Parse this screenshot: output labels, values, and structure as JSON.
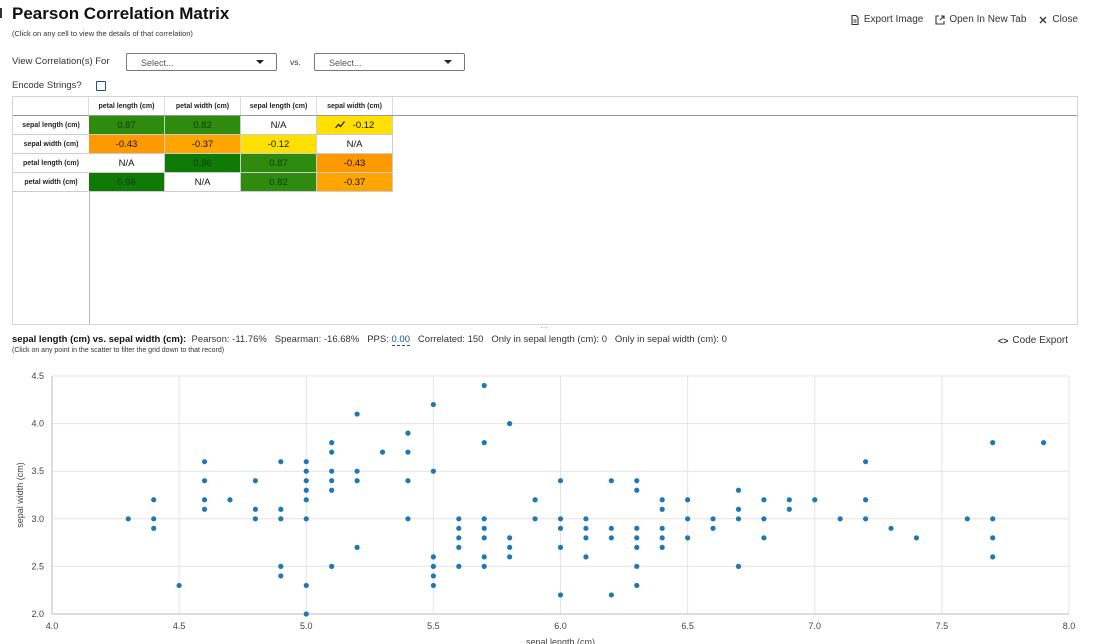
{
  "header": {
    "title": "Pearson Correlation Matrix",
    "subtitle": "(Click on any cell to view the details of that correlation)"
  },
  "actions": {
    "export_image": "Export Image",
    "open_new_tab": "Open In New Tab",
    "close": "Close"
  },
  "controls": {
    "view_label": "View Correlation(s) For",
    "select1_placeholder": "Select...",
    "vs_label": "vs.",
    "select2_placeholder": "Select...",
    "encode_label": "Encode Strings?",
    "encode_checked": false
  },
  "matrix": {
    "columns": [
      "petal length (cm)",
      "petal width (cm)",
      "sepal length (cm)",
      "sepal width (cm)"
    ],
    "rows": [
      {
        "label": "sepal length (cm)",
        "cells": [
          {
            "text": "0.87",
            "color": "#2e8b0e"
          },
          {
            "text": "0.82",
            "color": "#2e8b0e"
          },
          {
            "text": "N/A",
            "color": "#ffffff"
          },
          {
            "text": "-0.12",
            "color": "#ffe000",
            "icon": "trend-icon"
          }
        ]
      },
      {
        "label": "sepal width (cm)",
        "cells": [
          {
            "text": "-0.43",
            "color": "#ff9900"
          },
          {
            "text": "-0.37",
            "color": "#ffa500"
          },
          {
            "text": "-0.12",
            "color": "#ffe000"
          },
          {
            "text": "N/A",
            "color": "#ffffff"
          }
        ]
      },
      {
        "label": "petal length (cm)",
        "cells": [
          {
            "text": "N/A",
            "color": "#ffffff"
          },
          {
            "text": "0.96",
            "color": "#0f7a05"
          },
          {
            "text": "0.87",
            "color": "#2e8b0e"
          },
          {
            "text": "-0.43",
            "color": "#ff9900"
          }
        ]
      },
      {
        "label": "petal width (cm)",
        "cells": [
          {
            "text": "0.96",
            "color": "#0f7a05"
          },
          {
            "text": "N/A",
            "color": "#ffffff"
          },
          {
            "text": "0.82",
            "color": "#2e8b0e"
          },
          {
            "text": "-0.37",
            "color": "#ffa500"
          }
        ]
      }
    ]
  },
  "scatter_info": {
    "title": "sepal length (cm) vs. sepal width (cm):",
    "pearson_label": "Pearson:",
    "pearson": "-11.76%",
    "spearman_label": "Spearman:",
    "spearman": "-16.68%",
    "pps_label": "PPS:",
    "pps": "0.00",
    "correlated_label": "Correlated:",
    "correlated": "150",
    "only_x_label": "Only in sepal length (cm):",
    "only_x": "0",
    "only_y_label": "Only in sepal width (cm):",
    "only_y": "0",
    "subtitle": "(Click on any point in the scatter to filter the grid down to that record)",
    "code_export": "Code Export"
  },
  "chart_data": {
    "type": "scatter",
    "title": "",
    "xlabel": "sepal length (cm)",
    "ylabel": "sepal width (cm)",
    "xlim": [
      4.0,
      8.0
    ],
    "ylim": [
      2.0,
      4.5
    ],
    "xticks": [
      "4.0",
      "4.5",
      "5.0",
      "5.5",
      "6.0",
      "6.5",
      "7.0",
      "7.5",
      "8.0"
    ],
    "yticks": [
      "2.0",
      "2.5",
      "3.0",
      "3.5",
      "4.0",
      "4.5"
    ],
    "grid": true,
    "point_color": "#1f77b4",
    "points": [
      [
        4.3,
        3.0
      ],
      [
        4.4,
        2.9
      ],
      [
        4.4,
        3.0
      ],
      [
        4.4,
        3.2
      ],
      [
        4.5,
        2.3
      ],
      [
        4.6,
        3.1
      ],
      [
        4.6,
        3.2
      ],
      [
        4.6,
        3.4
      ],
      [
        4.6,
        3.6
      ],
      [
        4.7,
        3.2
      ],
      [
        4.8,
        3.0
      ],
      [
        4.8,
        3.1
      ],
      [
        4.8,
        3.4
      ],
      [
        4.9,
        2.4
      ],
      [
        4.9,
        2.5
      ],
      [
        4.9,
        3.0
      ],
      [
        4.9,
        3.1
      ],
      [
        4.9,
        3.6
      ],
      [
        5.0,
        2.0
      ],
      [
        5.0,
        2.3
      ],
      [
        5.0,
        3.0
      ],
      [
        5.0,
        3.2
      ],
      [
        5.0,
        3.3
      ],
      [
        5.0,
        3.4
      ],
      [
        5.0,
        3.5
      ],
      [
        5.0,
        3.6
      ],
      [
        5.1,
        2.5
      ],
      [
        5.1,
        3.3
      ],
      [
        5.1,
        3.4
      ],
      [
        5.1,
        3.5
      ],
      [
        5.1,
        3.7
      ],
      [
        5.1,
        3.8
      ],
      [
        5.2,
        2.7
      ],
      [
        5.2,
        3.4
      ],
      [
        5.2,
        3.5
      ],
      [
        5.2,
        4.1
      ],
      [
        5.3,
        3.7
      ],
      [
        5.4,
        3.0
      ],
      [
        5.4,
        3.4
      ],
      [
        5.4,
        3.7
      ],
      [
        5.4,
        3.9
      ],
      [
        5.5,
        2.3
      ],
      [
        5.5,
        2.4
      ],
      [
        5.5,
        2.5
      ],
      [
        5.5,
        2.6
      ],
      [
        5.5,
        3.5
      ],
      [
        5.5,
        4.2
      ],
      [
        5.6,
        2.5
      ],
      [
        5.6,
        2.7
      ],
      [
        5.6,
        2.8
      ],
      [
        5.6,
        2.9
      ],
      [
        5.6,
        3.0
      ],
      [
        5.7,
        2.5
      ],
      [
        5.7,
        2.6
      ],
      [
        5.7,
        2.8
      ],
      [
        5.7,
        2.9
      ],
      [
        5.7,
        3.0
      ],
      [
        5.7,
        3.8
      ],
      [
        5.7,
        4.4
      ],
      [
        5.8,
        2.6
      ],
      [
        5.8,
        2.7
      ],
      [
        5.8,
        2.8
      ],
      [
        5.8,
        4.0
      ],
      [
        5.9,
        3.0
      ],
      [
        5.9,
        3.2
      ],
      [
        6.0,
        2.2
      ],
      [
        6.0,
        2.7
      ],
      [
        6.0,
        2.9
      ],
      [
        6.0,
        3.0
      ],
      [
        6.0,
        3.4
      ],
      [
        6.1,
        2.6
      ],
      [
        6.1,
        2.8
      ],
      [
        6.1,
        2.9
      ],
      [
        6.1,
        3.0
      ],
      [
        6.2,
        2.2
      ],
      [
        6.2,
        2.8
      ],
      [
        6.2,
        2.9
      ],
      [
        6.2,
        3.4
      ],
      [
        6.3,
        2.3
      ],
      [
        6.3,
        2.5
      ],
      [
        6.3,
        2.7
      ],
      [
        6.3,
        2.8
      ],
      [
        6.3,
        2.9
      ],
      [
        6.3,
        3.3
      ],
      [
        6.3,
        3.4
      ],
      [
        6.4,
        2.7
      ],
      [
        6.4,
        2.8
      ],
      [
        6.4,
        2.9
      ],
      [
        6.4,
        3.1
      ],
      [
        6.4,
        3.2
      ],
      [
        6.5,
        2.8
      ],
      [
        6.5,
        3.0
      ],
      [
        6.5,
        3.2
      ],
      [
        6.6,
        2.9
      ],
      [
        6.6,
        3.0
      ],
      [
        6.7,
        2.5
      ],
      [
        6.7,
        3.0
      ],
      [
        6.7,
        3.1
      ],
      [
        6.7,
        3.3
      ],
      [
        6.8,
        2.8
      ],
      [
        6.8,
        3.0
      ],
      [
        6.8,
        3.2
      ],
      [
        6.9,
        3.1
      ],
      [
        6.9,
        3.2
      ],
      [
        7.0,
        3.2
      ],
      [
        7.1,
        3.0
      ],
      [
        7.2,
        3.0
      ],
      [
        7.2,
        3.2
      ],
      [
        7.2,
        3.6
      ],
      [
        7.3,
        2.9
      ],
      [
        7.4,
        2.8
      ],
      [
        7.6,
        3.0
      ],
      [
        7.7,
        2.6
      ],
      [
        7.7,
        2.8
      ],
      [
        7.7,
        3.0
      ],
      [
        7.7,
        3.8
      ],
      [
        7.9,
        3.8
      ]
    ]
  }
}
